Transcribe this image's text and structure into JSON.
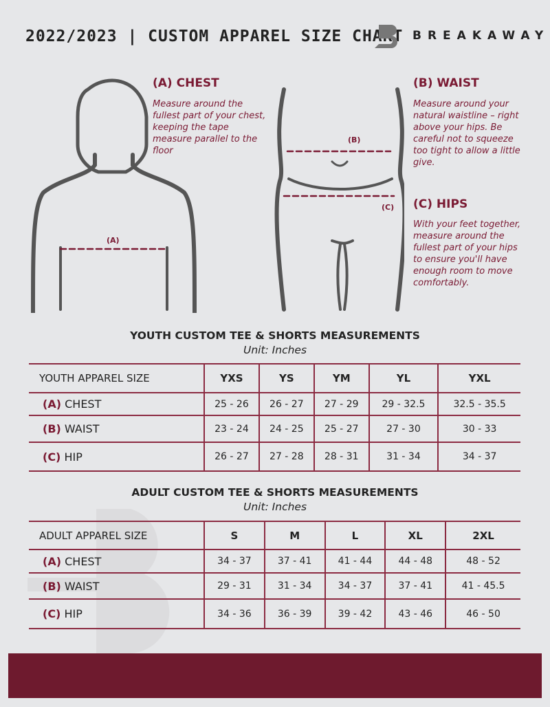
{
  "header": {
    "title": "2022/2023  |  CUSTOM APPAREL SIZE CHART",
    "brand": "BREAKAWAY"
  },
  "colors": {
    "accent": "#7a1a33",
    "background": "#e6e7e9",
    "footer": "#6e1a2e"
  },
  "chest": {
    "heading": "(A) CHEST",
    "text": "Measure around the fullest part of your chest, keeping the tape measure parallel to the floor",
    "marker": "(A)"
  },
  "waist": {
    "heading": "(B) WAIST",
    "text": "Measure around your natural waistline – right above your hips. Be careful not to squeeze too tight to allow a little give.",
    "marker": "(B)"
  },
  "hips": {
    "heading": "(C) HIPS",
    "text": "With your feet together, measure around the fullest part of your hips to ensure you'll have enough room to move comfortably.",
    "marker": "(C)"
  },
  "youth": {
    "title": "YOUTH CUSTOM TEE & SHORTS MEASUREMENTS",
    "unit": "Unit: Inches",
    "header": "YOUTH APPAREL SIZE",
    "sizes": [
      "YXS",
      "YS",
      "YM",
      "YL",
      "YXL"
    ],
    "rows": [
      {
        "tag": "(A)",
        "name": "CHEST",
        "values": [
          "25 - 26",
          "26 - 27",
          "27 - 29",
          "29 - 32.5",
          "32.5 - 35.5"
        ]
      },
      {
        "tag": "(B)",
        "name": "WAIST",
        "values": [
          "23 - 24",
          "24 - 25",
          "25 - 27",
          "27 - 30",
          "30 - 33"
        ]
      },
      {
        "tag": "(C)",
        "name": "HIP",
        "values": [
          "26 - 27",
          "27 - 28",
          "28 - 31",
          "31 - 34",
          "34 - 37"
        ]
      }
    ]
  },
  "adult": {
    "title": "ADULT CUSTOM TEE & SHORTS MEASUREMENTS",
    "unit": "Unit: Inches",
    "header": "ADULT APPAREL SIZE",
    "sizes": [
      "S",
      "M",
      "L",
      "XL",
      "2XL"
    ],
    "rows": [
      {
        "tag": "(A)",
        "name": "CHEST",
        "values": [
          "34 - 37",
          "37 - 41",
          "41 - 44",
          "44 - 48",
          "48 - 52"
        ]
      },
      {
        "tag": "(B)",
        "name": "WAIST",
        "values": [
          "29 - 31",
          "31 - 34",
          "34 - 37",
          "37 - 41",
          "41 - 45.5"
        ]
      },
      {
        "tag": "(C)",
        "name": "HIP",
        "values": [
          "34 - 36",
          "36 - 39",
          "39 - 42",
          "43 - 46",
          "46 - 50"
        ]
      }
    ]
  }
}
